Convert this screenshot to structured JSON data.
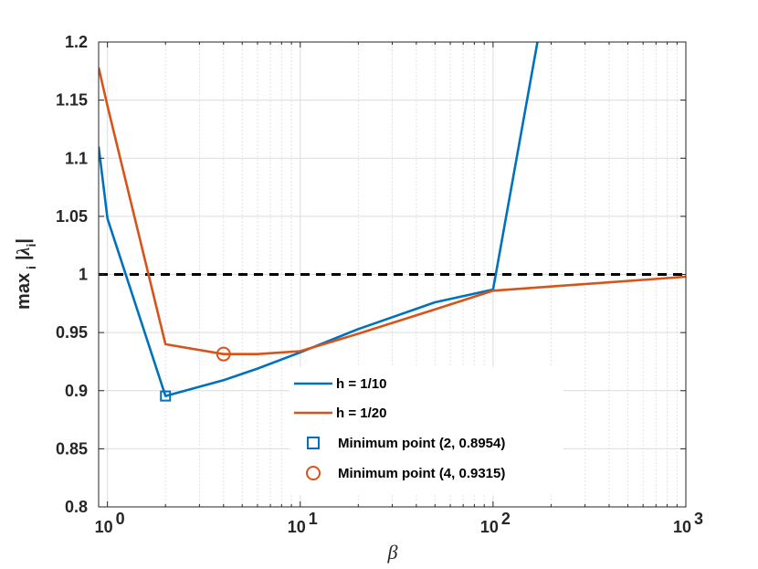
{
  "chart_data": {
    "type": "line",
    "xscale": "log",
    "xlim": [
      0.9,
      1000
    ],
    "ylim": [
      0.8,
      1.2
    ],
    "xlabel": "β",
    "ylabel": "max i |λi|",
    "grid": true,
    "legend_position": "inside-lower-center",
    "x_ticks": [
      {
        "base": "10",
        "exp": "0",
        "value": 1
      },
      {
        "base": "10",
        "exp": "1",
        "value": 10
      },
      {
        "base": "10",
        "exp": "2",
        "value": 100
      },
      {
        "base": "10",
        "exp": "3",
        "value": 1000
      }
    ],
    "y_ticks": [
      {
        "label": "0.8",
        "value": 0.8
      },
      {
        "label": "0.85",
        "value": 0.85
      },
      {
        "label": "0.9",
        "value": 0.9
      },
      {
        "label": "0.95",
        "value": 0.95
      },
      {
        "label": "1",
        "value": 1.0
      },
      {
        "label": "1.05",
        "value": 1.05
      },
      {
        "label": "1.1",
        "value": 1.1
      },
      {
        "label": "1.15",
        "value": 1.15
      },
      {
        "label": "1.2",
        "value": 1.2
      }
    ],
    "reference_line": {
      "y": 1.0,
      "color": "#000000",
      "style": "dashed"
    },
    "series": [
      {
        "name": "h = 1/10",
        "color": "#0072BD",
        "x": [
          0.9,
          1,
          2,
          4,
          6,
          10,
          20,
          50,
          100,
          170
        ],
        "y": [
          1.11,
          1.048,
          0.8954,
          0.909,
          0.919,
          0.933,
          0.953,
          0.976,
          0.987,
          1.2
        ]
      },
      {
        "name": "h = 1/20",
        "color": "#D95319",
        "x": [
          0.9,
          1,
          2,
          4,
          6,
          10,
          20,
          50,
          100,
          1000
        ],
        "y": [
          1.178,
          1.145,
          0.94,
          0.9315,
          0.9315,
          0.934,
          0.949,
          0.97,
          0.986,
          0.998
        ]
      }
    ],
    "markers": [
      {
        "name": "Minimum point (2, 0.8954)",
        "x": 2,
        "y": 0.8954,
        "shape": "square",
        "color": "#0072BD"
      },
      {
        "name": "Minimum point (4, 0.9315)",
        "x": 4,
        "y": 0.9315,
        "shape": "circle",
        "color": "#D95319"
      }
    ]
  }
}
